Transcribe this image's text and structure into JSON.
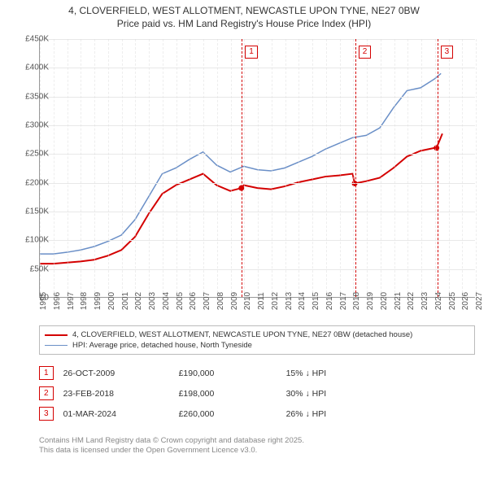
{
  "title_line1": "4, CLOVERFIELD, WEST ALLOTMENT, NEWCASTLE UPON TYNE, NE27 0BW",
  "title_line2": "Price paid vs. HM Land Registry's House Price Index (HPI)",
  "chart": {
    "type": "line",
    "xlim": [
      1995,
      2027
    ],
    "ylim": [
      0,
      450000
    ],
    "ytick_step": 50000,
    "y_ticks": [
      "£0",
      "£50K",
      "£100K",
      "£150K",
      "£200K",
      "£250K",
      "£300K",
      "£350K",
      "£400K",
      "£450K"
    ],
    "x_ticks": [
      1995,
      1996,
      1997,
      1998,
      1999,
      2000,
      2001,
      2002,
      2003,
      2004,
      2005,
      2006,
      2007,
      2008,
      2009,
      2010,
      2011,
      2012,
      2013,
      2014,
      2015,
      2016,
      2017,
      2018,
      2019,
      2020,
      2021,
      2022,
      2023,
      2024,
      2025,
      2026,
      2027
    ],
    "grid_color": "#e8e8e8",
    "background_color": "#ffffff",
    "series": {
      "subject": {
        "label": "4, CLOVERFIELD, WEST ALLOTMENT, NEWCASTLE UPON TYNE, NE27 0BW (detached house)",
        "color": "#d40000",
        "line_width": 2,
        "data": [
          [
            1995,
            58000
          ],
          [
            1996,
            58000
          ],
          [
            1997,
            60000
          ],
          [
            1998,
            62000
          ],
          [
            1999,
            65000
          ],
          [
            2000,
            72000
          ],
          [
            2001,
            82000
          ],
          [
            2002,
            105000
          ],
          [
            2003,
            145000
          ],
          [
            2004,
            180000
          ],
          [
            2005,
            195000
          ],
          [
            2006,
            205000
          ],
          [
            2007,
            215000
          ],
          [
            2008,
            195000
          ],
          [
            2009,
            185000
          ],
          [
            2009.82,
            190000
          ],
          [
            2010,
            195000
          ],
          [
            2011,
            190000
          ],
          [
            2012,
            188000
          ],
          [
            2013,
            193000
          ],
          [
            2014,
            200000
          ],
          [
            2015,
            205000
          ],
          [
            2016,
            210000
          ],
          [
            2017,
            212000
          ],
          [
            2018,
            215000
          ],
          [
            2018.15,
            198000
          ],
          [
            2019,
            202000
          ],
          [
            2020,
            208000
          ],
          [
            2021,
            225000
          ],
          [
            2022,
            245000
          ],
          [
            2023,
            255000
          ],
          [
            2024,
            260000
          ],
          [
            2024.17,
            260000
          ],
          [
            2024.6,
            285000
          ]
        ]
      },
      "hpi": {
        "label": "HPI: Average price, detached house, North Tyneside",
        "color": "#6a8fc7",
        "line_width": 1.5,
        "data": [
          [
            1995,
            75000
          ],
          [
            1996,
            75000
          ],
          [
            1997,
            78000
          ],
          [
            1998,
            82000
          ],
          [
            1999,
            88000
          ],
          [
            2000,
            97000
          ],
          [
            2001,
            108000
          ],
          [
            2002,
            135000
          ],
          [
            2003,
            175000
          ],
          [
            2004,
            215000
          ],
          [
            2005,
            225000
          ],
          [
            2006,
            240000
          ],
          [
            2007,
            253000
          ],
          [
            2008,
            230000
          ],
          [
            2009,
            218000
          ],
          [
            2010,
            228000
          ],
          [
            2011,
            222000
          ],
          [
            2012,
            220000
          ],
          [
            2013,
            225000
          ],
          [
            2014,
            235000
          ],
          [
            2015,
            245000
          ],
          [
            2016,
            258000
          ],
          [
            2017,
            268000
          ],
          [
            2018,
            278000
          ],
          [
            2019,
            282000
          ],
          [
            2020,
            295000
          ],
          [
            2021,
            330000
          ],
          [
            2022,
            360000
          ],
          [
            2023,
            365000
          ],
          [
            2024,
            380000
          ],
          [
            2024.5,
            390000
          ]
        ]
      }
    },
    "sale_markers": [
      {
        "idx": "1",
        "year": 2009.82,
        "price": 190000,
        "color": "#d40000"
      },
      {
        "idx": "2",
        "year": 2018.15,
        "price": 198000,
        "color": "#d40000"
      },
      {
        "idx": "3",
        "year": 2024.17,
        "price": 260000,
        "color": "#d40000"
      }
    ]
  },
  "legend": {
    "row0": {
      "color": "#d40000",
      "width": 2
    },
    "row1": {
      "color": "#6a8fc7",
      "width": 1.5
    }
  },
  "sales": [
    {
      "idx": "1",
      "date": "26-OCT-2009",
      "price": "£190,000",
      "diff": "15% ↓ HPI",
      "color": "#d40000"
    },
    {
      "idx": "2",
      "date": "23-FEB-2018",
      "price": "£198,000",
      "diff": "30% ↓ HPI",
      "color": "#d40000"
    },
    {
      "idx": "3",
      "date": "01-MAR-2024",
      "price": "£260,000",
      "diff": "26% ↓ HPI",
      "color": "#d40000"
    }
  ],
  "footer_line1": "Contains HM Land Registry data © Crown copyright and database right 2025.",
  "footer_line2": "This data is licensed under the Open Government Licence v3.0."
}
